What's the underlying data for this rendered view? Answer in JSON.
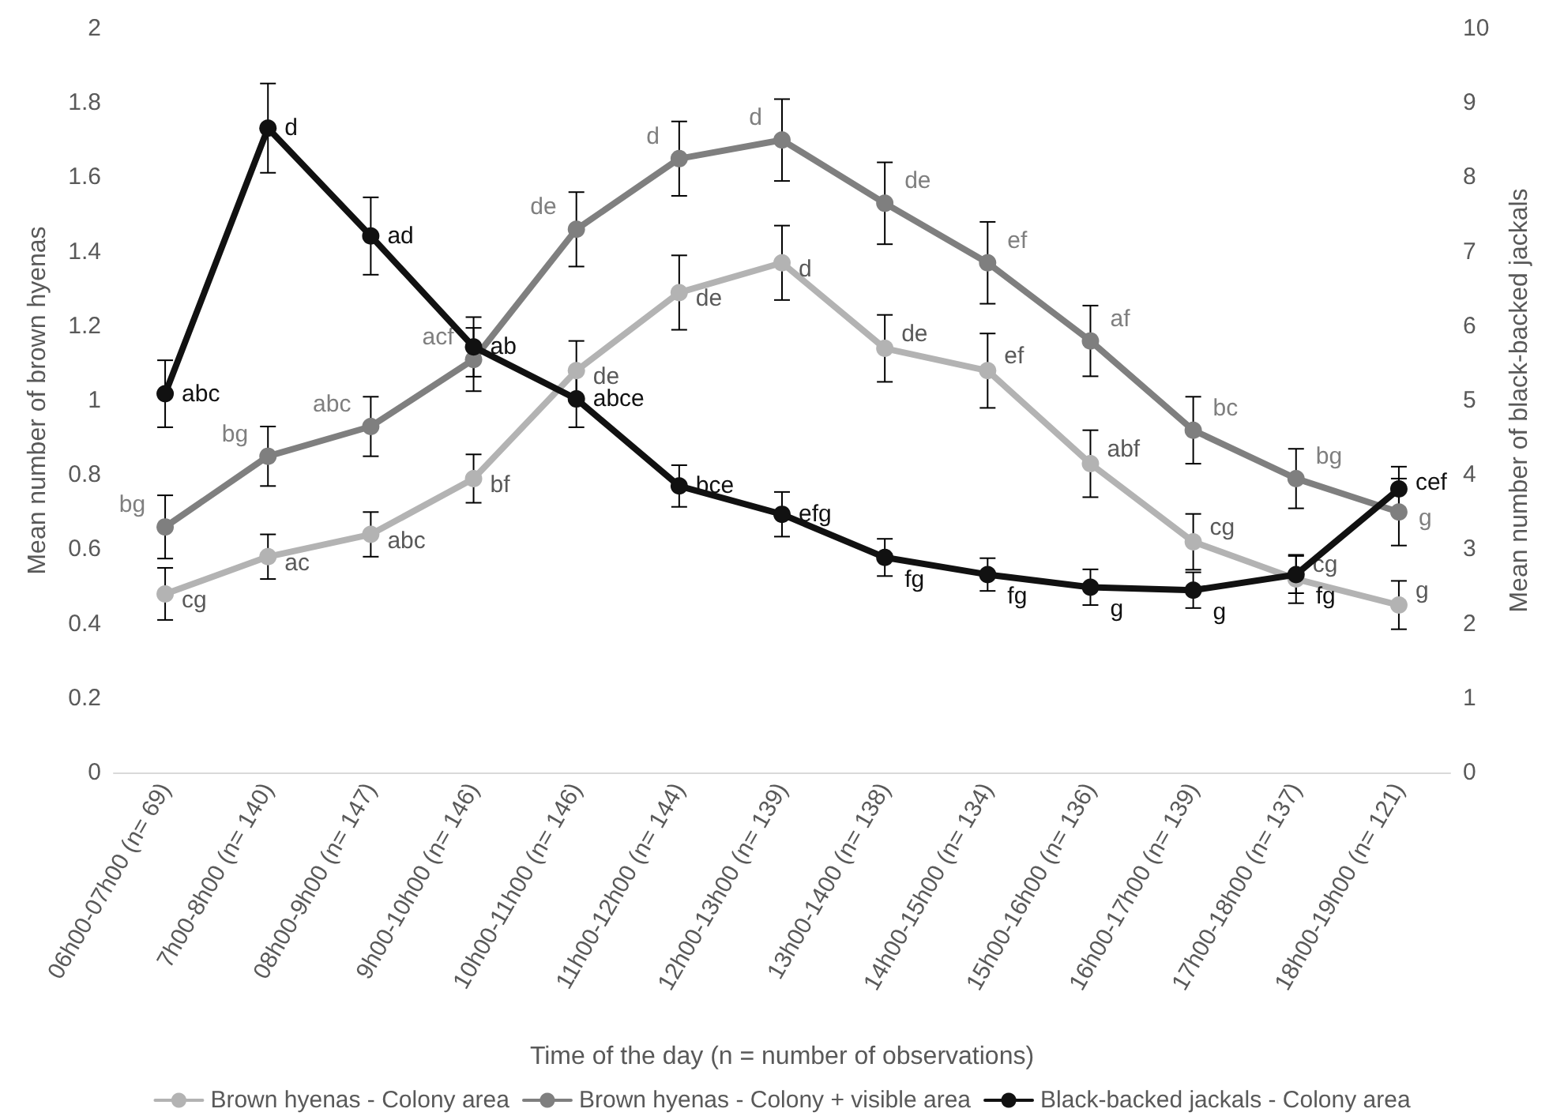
{
  "chart_data": {
    "type": "line",
    "xlabel": "Time of the day (n = number of observations)",
    "ylabel": "Mean number of brown hyenas",
    "y2label": "Mean number of black-backed jackals",
    "categories": [
      "06h00-07h00 (n= 69)",
      "7h00-8h00 (n= 140)",
      "08h00-9h00 (n= 147)",
      "9h00-10h00 (n= 146)",
      "10h00-11h00 (n= 146)",
      "11h00-12h00 (n= 144)",
      "12h00-13h00 (n= 139)",
      "13h00-1400 (n= 138)",
      "14h00-15h00 (n= 134)",
      "15h00-16h00 (n= 136)",
      "16h00-17h00 (n= 139)",
      "17h00-18h00 (n= 137)",
      "18h00-19h00 (n= 121)"
    ],
    "series": [
      {
        "name": "Brown hyenas - Colony area",
        "color": "#b3b3b3",
        "values": [
          0.48,
          0.58,
          0.64,
          0.79,
          1.08,
          1.29,
          1.37,
          1.14,
          1.08,
          0.83,
          0.62,
          0.52,
          0.45
        ],
        "errors": [
          0.07,
          0.06,
          0.06,
          0.065,
          0.08,
          0.1,
          0.1,
          0.09,
          0.1,
          0.09,
          0.075,
          0.065,
          0.065
        ],
        "value_labels": [
          "cg",
          "ac",
          "abc",
          "bf",
          "de",
          "de",
          "d",
          "de",
          "ef",
          "abf",
          "cg",
          "cg",
          "g"
        ]
      },
      {
        "name": "Brown hyenas - Colony + visible area",
        "color": "#7f7f7f",
        "values": [
          0.66,
          0.85,
          0.93,
          1.11,
          1.46,
          1.65,
          1.7,
          1.53,
          1.37,
          1.16,
          0.92,
          0.79,
          0.7
        ],
        "errors": [
          0.085,
          0.08,
          0.08,
          0.085,
          0.1,
          0.1,
          0.11,
          0.11,
          0.11,
          0.095,
          0.09,
          0.08,
          0.09
        ],
        "value_labels": [
          "bg",
          "bg",
          "abc",
          "acf",
          "de",
          "d",
          "d",
          "de",
          "ef",
          "af",
          "bc",
          "bg",
          "g"
        ]
      },
      {
        "name": "Black-backed jackals - Colony area",
        "color": "#111111",
        "axis": "y2",
        "values": [
          5.09,
          8.66,
          7.21,
          5.72,
          5.02,
          3.85,
          3.47,
          2.89,
          2.66,
          2.49,
          2.45,
          2.66,
          3.81
        ],
        "errors": [
          0.45,
          0.6,
          0.52,
          0.4,
          0.38,
          0.28,
          0.3,
          0.25,
          0.22,
          0.24,
          0.24,
          0.25,
          0.3
        ],
        "value_labels": [
          "abc",
          "d",
          "ad",
          "ab",
          "abce",
          "bce",
          "efg",
          "fg",
          "fg",
          "g",
          "g",
          "fg",
          "cef"
        ]
      }
    ],
    "ylim": [
      0,
      2
    ],
    "yticks": [
      0,
      0.2,
      0.4,
      0.6,
      0.8,
      1,
      1.2,
      1.4,
      1.6,
      1.8,
      2
    ],
    "y2lim": [
      0,
      10
    ],
    "y2ticks": [
      0,
      1,
      2,
      3,
      4,
      5,
      6,
      7,
      8,
      9,
      10
    ],
    "grid": false,
    "legend": "bottom",
    "marker": "circle",
    "line_style": "solid"
  }
}
